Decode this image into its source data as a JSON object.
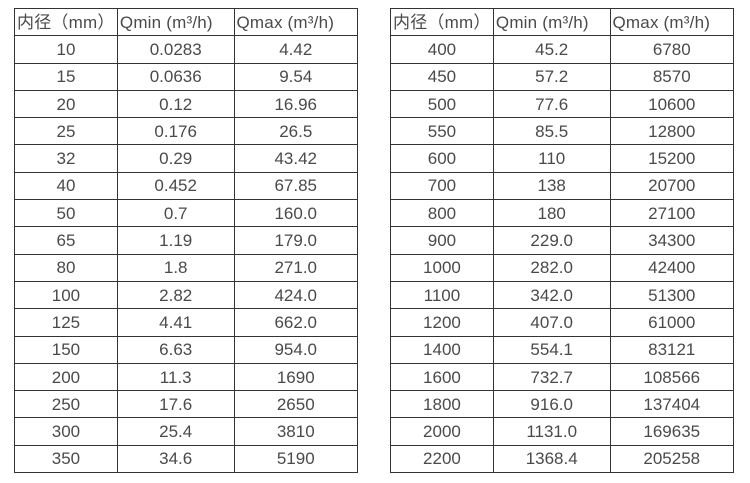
{
  "colors": {
    "border": "#333333",
    "text": "#4a4a4a",
    "background": "#ffffff"
  },
  "tables": [
    {
      "name": "flow-table-small-diameter",
      "headers": [
        "内径（mm）",
        "Qmin (m³/h)",
        "Qmax (m³/h)"
      ],
      "rows": [
        [
          "10",
          "0.0283",
          "4.42"
        ],
        [
          "15",
          "0.0636",
          "9.54"
        ],
        [
          "20",
          "0.12",
          "16.96"
        ],
        [
          "25",
          "0.176",
          "26.5"
        ],
        [
          "32",
          "0.29",
          "43.42"
        ],
        [
          "40",
          "0.452",
          "67.85"
        ],
        [
          "50",
          "0.7",
          "160.0"
        ],
        [
          "65",
          "1.19",
          "179.0"
        ],
        [
          "80",
          "1.8",
          "271.0"
        ],
        [
          "100",
          "2.82",
          "424.0"
        ],
        [
          "125",
          "4.41",
          "662.0"
        ],
        [
          "150",
          "6.63",
          "954.0"
        ],
        [
          "200",
          "11.3",
          "1690"
        ],
        [
          "250",
          "17.6",
          "2650"
        ],
        [
          "300",
          "25.4",
          "3810"
        ],
        [
          "350",
          "34.6",
          "5190"
        ]
      ]
    },
    {
      "name": "flow-table-large-diameter",
      "headers": [
        "内径（mm）",
        "Qmin (m³/h)",
        "Qmax (m³/h)"
      ],
      "rows": [
        [
          "400",
          "45.2",
          "6780"
        ],
        [
          "450",
          "57.2",
          "8570"
        ],
        [
          "500",
          "77.6",
          "10600"
        ],
        [
          "550",
          "85.5",
          "12800"
        ],
        [
          "600",
          "110",
          "15200"
        ],
        [
          "700",
          "138",
          "20700"
        ],
        [
          "800",
          "180",
          "27100"
        ],
        [
          "900",
          "229.0",
          "34300"
        ],
        [
          "1000",
          "282.0",
          "42400"
        ],
        [
          "1100",
          "342.0",
          "51300"
        ],
        [
          "1200",
          "407.0",
          "61000"
        ],
        [
          "1400",
          "554.1",
          "83121"
        ],
        [
          "1600",
          "732.7",
          "108566"
        ],
        [
          "1800",
          "916.0",
          "137404"
        ],
        [
          "2000",
          "1131.0",
          "169635"
        ],
        [
          "2200",
          "1368.4",
          "205258"
        ]
      ]
    }
  ]
}
